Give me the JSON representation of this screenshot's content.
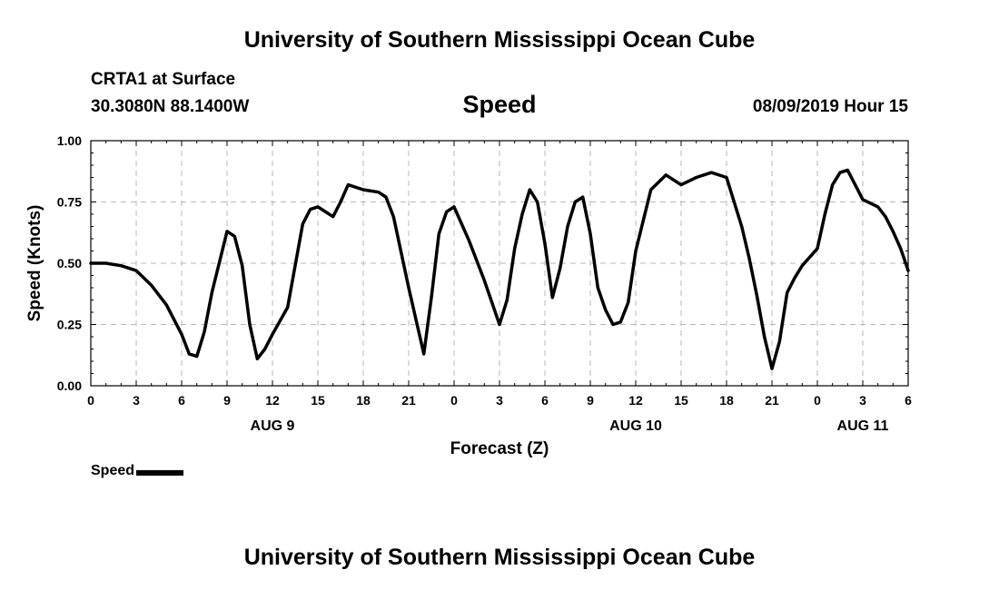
{
  "header": {
    "title": "University of Southern Mississippi Ocean Cube",
    "station": "CRTA1 at Surface",
    "coords": "30.3080N 88.1400W",
    "parameter": "Speed",
    "datetime": "08/09/2019 Hour 15",
    "footer_title": "University of Southern Mississippi Ocean Cube"
  },
  "chart_data": {
    "type": "line",
    "title": "Speed",
    "xlabel": "Forecast (Z)",
    "ylabel": "Speed (Knots)",
    "ylim": [
      0,
      1
    ],
    "xlim": [
      0,
      54
    ],
    "y_ticks": [
      "0.00",
      "0.25",
      "0.50",
      "0.75",
      "1.00"
    ],
    "x_tick_labels": [
      "0",
      "3",
      "6",
      "9",
      "12",
      "15",
      "18",
      "21",
      "0",
      "3",
      "6",
      "9",
      "12",
      "15",
      "18",
      "21",
      "0",
      "3",
      "6"
    ],
    "date_labels": [
      {
        "label": "AUG 9",
        "hour": 12
      },
      {
        "label": "AUG 10",
        "hour": 36
      },
      {
        "label": "AUG 11",
        "hour": 51
      }
    ],
    "grid": true,
    "legend": "bottom-left",
    "series": [
      {
        "name": "Speed",
        "color": "#000000",
        "x": [
          0,
          1,
          2,
          3,
          4,
          5,
          6,
          6.5,
          7,
          7.5,
          8,
          9,
          9.5,
          10,
          10.5,
          11,
          11.5,
          12,
          13,
          14,
          14.5,
          15,
          16,
          16.5,
          17,
          18,
          19,
          19.5,
          20,
          21,
          22,
          22.5,
          23,
          23.5,
          24,
          25,
          26,
          27,
          27.5,
          28,
          28.5,
          29,
          29.5,
          30,
          30.5,
          31,
          31.5,
          32,
          32.5,
          33,
          33.5,
          34,
          34.5,
          35,
          35.5,
          36,
          37,
          38,
          39,
          40,
          41,
          42,
          43,
          43.5,
          44,
          44.5,
          45,
          45.5,
          46,
          46.5,
          47,
          48,
          48.5,
          49,
          49.5,
          50,
          51,
          52,
          52.5,
          53,
          53.5,
          54
        ],
        "y": [
          0.5,
          0.5,
          0.49,
          0.47,
          0.41,
          0.33,
          0.21,
          0.13,
          0.12,
          0.22,
          0.38,
          0.63,
          0.61,
          0.49,
          0.25,
          0.11,
          0.15,
          0.21,
          0.32,
          0.66,
          0.72,
          0.73,
          0.69,
          0.75,
          0.82,
          0.8,
          0.79,
          0.77,
          0.69,
          0.4,
          0.13,
          0.36,
          0.62,
          0.71,
          0.73,
          0.59,
          0.43,
          0.25,
          0.35,
          0.56,
          0.7,
          0.8,
          0.75,
          0.58,
          0.36,
          0.48,
          0.65,
          0.75,
          0.77,
          0.62,
          0.4,
          0.31,
          0.25,
          0.26,
          0.34,
          0.55,
          0.8,
          0.86,
          0.82,
          0.85,
          0.87,
          0.85,
          0.65,
          0.52,
          0.37,
          0.2,
          0.07,
          0.18,
          0.38,
          0.44,
          0.49,
          0.56,
          0.7,
          0.82,
          0.87,
          0.88,
          0.76,
          0.73,
          0.69,
          0.63,
          0.56,
          0.47
        ]
      }
    ]
  },
  "legend": {
    "label": "Speed"
  }
}
